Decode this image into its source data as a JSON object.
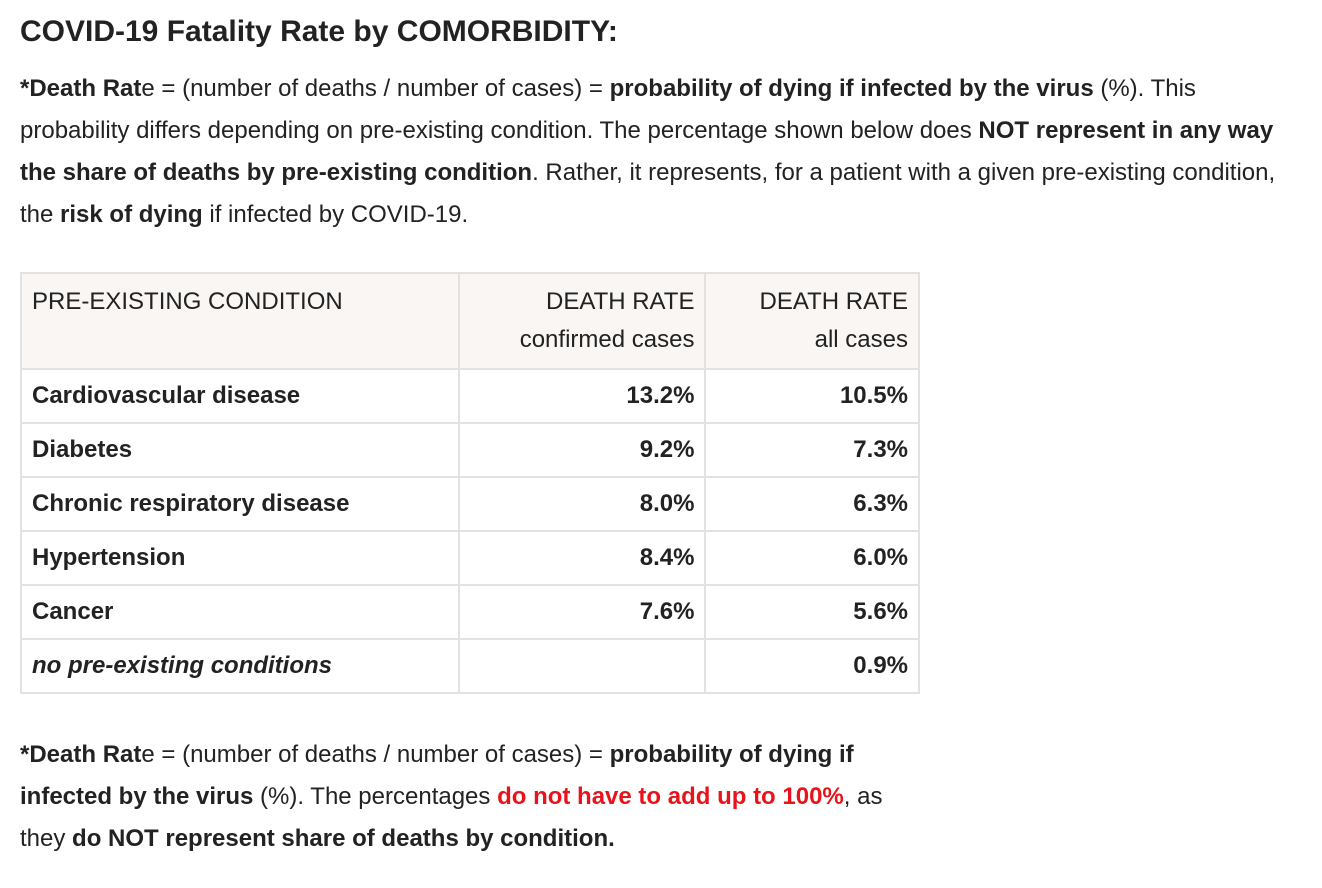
{
  "title": "COVID-19 Fatality Rate by COMORBIDITY:",
  "intro": {
    "star_bold": "*Death Rat",
    "star_rest": "e",
    "formula": " = (number of deaths / number of cases) = ",
    "prob_bold": "probability of dying if infected by the virus",
    "after_prob": " (%). This probability differs depending on pre-existing condition. The percentage shown below does ",
    "not_bold": "NOT represent in any way the share of deaths by pre-existing condition",
    "rather": ". Rather, it represents, for a patient with a given pre-existing condition, the ",
    "risk_bold": "risk of dying",
    "end": " if infected by COVID-19."
  },
  "table": {
    "headers": {
      "condition": "PRE-EXISTING CONDITION",
      "confirmed_line1": "DEATH RATE",
      "confirmed_line2": "confirmed cases",
      "all_line1": "DEATH RATE",
      "all_line2": "all cases"
    },
    "rows": [
      {
        "condition": "Cardiovascular disease",
        "confirmed": "13.2%",
        "all": "10.5%"
      },
      {
        "condition": "Diabetes",
        "confirmed": "9.2%",
        "all": "7.3%"
      },
      {
        "condition": "Chronic respiratory disease",
        "confirmed": "8.0%",
        "all": "6.3%"
      },
      {
        "condition": "Hypertension",
        "confirmed": "8.4%",
        "all": "6.0%"
      },
      {
        "condition": "Cancer",
        "confirmed": "7.6%",
        "all": "5.6%"
      },
      {
        "condition": "no pre-existing conditions",
        "confirmed": "",
        "all": "0.9%"
      }
    ]
  },
  "footnote": {
    "star_bold": "*Death Rat",
    "star_rest": "e",
    "formula": " = (number of deaths / number of cases) = ",
    "prob_bold": "probability of dying if infected by the virus",
    "after_prob": " (%). The percentages ",
    "red_text": "do not have to add up to 100%",
    "middle": ", as they ",
    "end_bold": "do NOT represent share of deaths by condition."
  },
  "colors": {
    "text": "#222222",
    "accent_red": "#e8141c",
    "header_bg": "#f9f6f3",
    "border": "#e2e2e2"
  }
}
